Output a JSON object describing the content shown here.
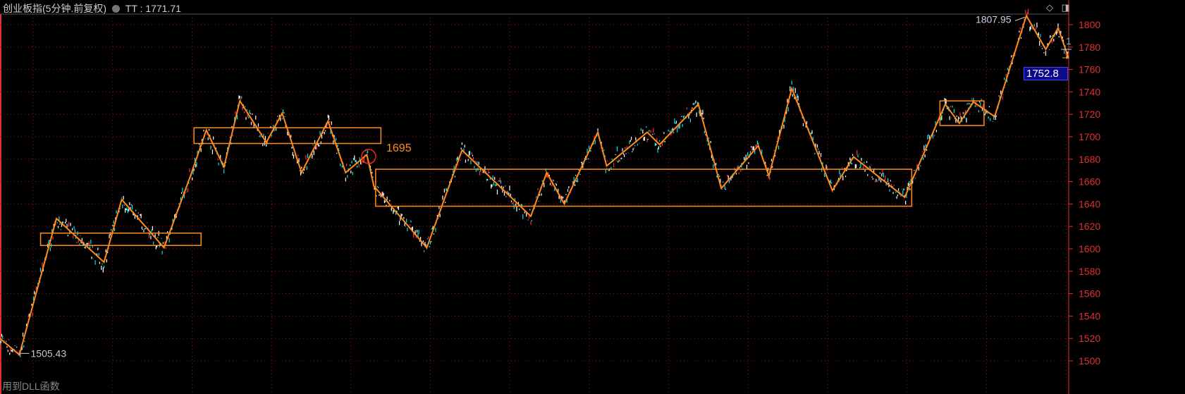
{
  "header": {
    "title": "创业板指(5分钟.前复权)",
    "indicator_name": "TT",
    "indicator_value": "1771.71"
  },
  "toolbar_icons": [
    "diamond-icon",
    "panel-icon"
  ],
  "price_label": "1752.8",
  "right_marker": "1",
  "bottom_text": "用到DLL函数",
  "colors": {
    "background": "#000000",
    "grid": "#aa1010",
    "axis": "#e03030",
    "zigzag": "#ff8c1a",
    "up": "#ff3030",
    "down": "#00e5ee",
    "line": "#ffffff",
    "price_box": "#0a0a8a"
  },
  "chart_data": {
    "type": "line",
    "title": "",
    "xlabel": "",
    "ylabel": "",
    "ylim": [
      1500,
      1810
    ],
    "yticks": [
      1500,
      1520,
      1540,
      1560,
      1580,
      1600,
      1620,
      1640,
      1660,
      1680,
      1700,
      1720,
      1740,
      1760,
      1780,
      1800
    ],
    "grid": true,
    "xlim": [
      0,
      606
    ],
    "zigzag": [
      [
        0,
        1520
      ],
      [
        11,
        1505.43
      ],
      [
        32,
        1627
      ],
      [
        59,
        1588
      ],
      [
        69,
        1644
      ],
      [
        93,
        1601
      ],
      [
        108,
        1665
      ],
      [
        117,
        1706
      ],
      [
        127,
        1673
      ],
      [
        136,
        1732
      ],
      [
        151,
        1695
      ],
      [
        160,
        1721
      ],
      [
        171,
        1668
      ],
      [
        186,
        1714
      ],
      [
        196,
        1668
      ],
      [
        208,
        1684
      ],
      [
        212,
        1656
      ],
      [
        242,
        1601
      ],
      [
        262,
        1688
      ],
      [
        301,
        1629
      ],
      [
        310,
        1668
      ],
      [
        320,
        1640
      ],
      [
        339,
        1704
      ],
      [
        344,
        1674
      ],
      [
        367,
        1704
      ],
      [
        374,
        1693
      ],
      [
        396,
        1729
      ],
      [
        409,
        1654
      ],
      [
        430,
        1692
      ],
      [
        436,
        1665
      ],
      [
        449,
        1743
      ],
      [
        472,
        1652
      ],
      [
        484,
        1682
      ],
      [
        513,
        1646
      ],
      [
        536,
        1729
      ],
      [
        544,
        1712
      ],
      [
        552,
        1731
      ],
      [
        564,
        1718
      ],
      [
        582,
        1807.95
      ],
      [
        593,
        1778
      ],
      [
        600,
        1797
      ],
      [
        606,
        1770
      ]
    ],
    "boxes": [
      {
        "x": [
          23,
          114
        ],
        "y": [
          1603,
          1614
        ]
      },
      {
        "x": [
          110,
          216
        ],
        "y": [
          1694,
          1708
        ]
      },
      {
        "x": [
          213,
          517
        ],
        "y": [
          1638,
          1671
        ]
      },
      {
        "x": [
          533,
          558
        ],
        "y": [
          1710,
          1732
        ]
      }
    ],
    "annotations": [
      {
        "text": "1807.95",
        "x": 582,
        "y": 1807.95
      },
      {
        "text": "1505.43",
        "x": 11,
        "y": 1505.43
      },
      {
        "text": "1695",
        "x": 209,
        "y": 1682
      }
    ]
  }
}
